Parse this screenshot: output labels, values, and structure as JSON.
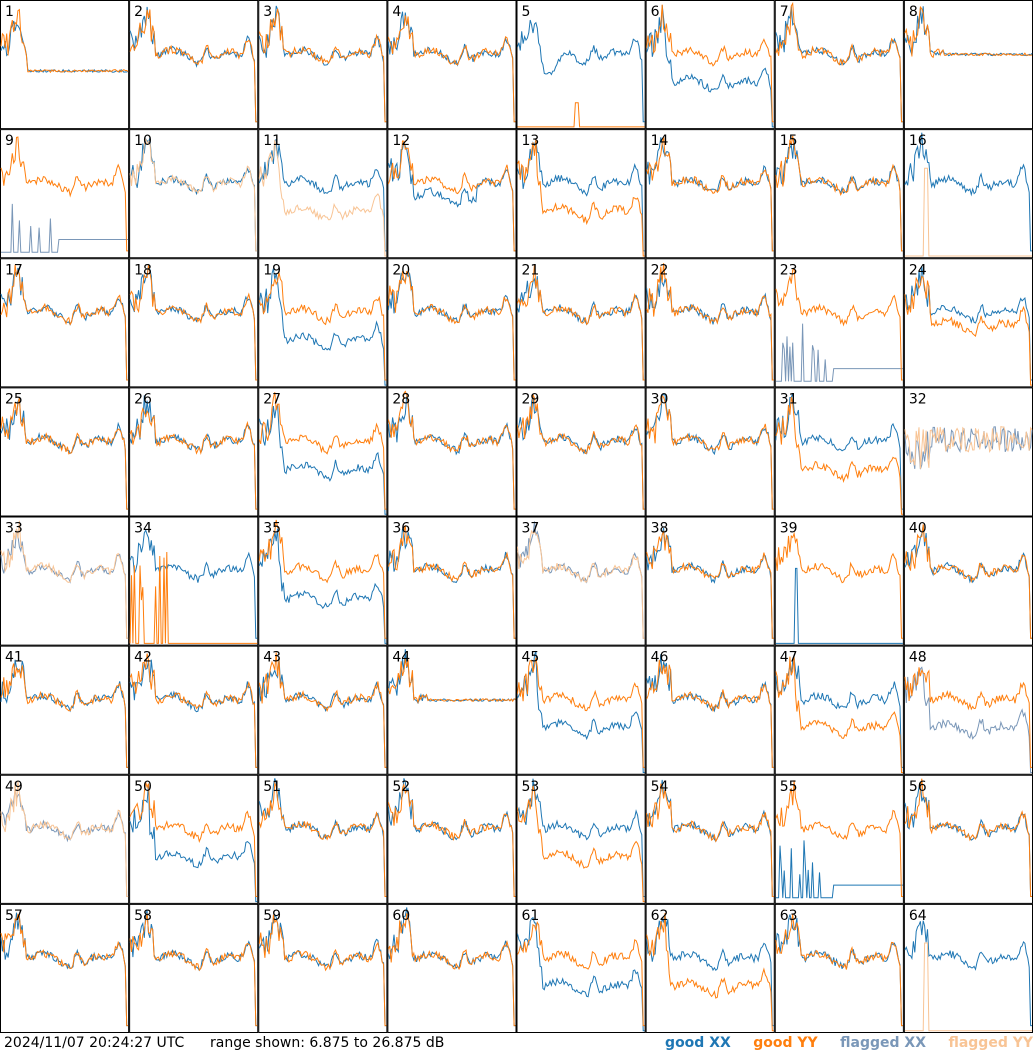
{
  "footer": {
    "timestamp": "2024/11/07 20:24:27 UTC",
    "range_text": "range shown: 6.875 to 26.875 dB"
  },
  "legend": [
    {
      "label": "good XX",
      "color": "#1f77b4"
    },
    {
      "label": "good YY",
      "color": "#ff7f0e"
    },
    {
      "label": "flagged XX",
      "color": "#7a97b8"
    },
    {
      "label": "flagged YY",
      "color": "#f8c495"
    }
  ],
  "chart_data": {
    "type": "line",
    "grid": "8x8 small multiples, one panel per antenna",
    "y_range_db": [
      6.875,
      26.875
    ],
    "series_names": [
      "good XX",
      "good YY",
      "flagged XX",
      "flagged YY"
    ],
    "panels": [
      {
        "id": "1",
        "xx": "good",
        "yy": "good",
        "pattern": "flat-low"
      },
      {
        "id": "2",
        "xx": "good",
        "yy": "good",
        "pattern": "normal"
      },
      {
        "id": "3",
        "xx": "good",
        "yy": "good",
        "pattern": "normal"
      },
      {
        "id": "4",
        "xx": "good",
        "yy": "good",
        "pattern": "normal"
      },
      {
        "id": "5",
        "xx": "good",
        "yy": "good",
        "pattern": "xx-dip-yy-bottom"
      },
      {
        "id": "6",
        "xx": "good",
        "yy": "good",
        "pattern": "xx-low"
      },
      {
        "id": "7",
        "xx": "good",
        "yy": "good",
        "pattern": "normal"
      },
      {
        "id": "8",
        "xx": "good",
        "yy": "good",
        "pattern": "flat-high"
      },
      {
        "id": "9",
        "xx": "flagged",
        "yy": "good",
        "pattern": "xx-spikes-bottom"
      },
      {
        "id": "10",
        "xx": "good",
        "yy": "flagged",
        "pattern": "normal"
      },
      {
        "id": "11",
        "xx": "good",
        "yy": "flagged",
        "pattern": "yy-low"
      },
      {
        "id": "12",
        "xx": "good",
        "yy": "good",
        "pattern": "yy-dropout"
      },
      {
        "id": "13",
        "xx": "good",
        "yy": "good",
        "pattern": "yy-low"
      },
      {
        "id": "14",
        "xx": "good",
        "yy": "good",
        "pattern": "normal"
      },
      {
        "id": "15",
        "xx": "good",
        "yy": "good",
        "pattern": "normal"
      },
      {
        "id": "16",
        "xx": "good",
        "yy": "flagged",
        "pattern": "xx-only-yy-bottom"
      },
      {
        "id": "17",
        "xx": "good",
        "yy": "good",
        "pattern": "normal"
      },
      {
        "id": "18",
        "xx": "good",
        "yy": "good",
        "pattern": "normal"
      },
      {
        "id": "19",
        "xx": "good",
        "yy": "good",
        "pattern": "xx-low"
      },
      {
        "id": "20",
        "xx": "good",
        "yy": "good",
        "pattern": "normal"
      },
      {
        "id": "21",
        "xx": "good",
        "yy": "good",
        "pattern": "normal"
      },
      {
        "id": "22",
        "xx": "good",
        "yy": "good",
        "pattern": "normal"
      },
      {
        "id": "23",
        "xx": "flagged",
        "yy": "good",
        "pattern": "xx-spikes-bottom"
      },
      {
        "id": "24",
        "xx": "good",
        "yy": "good",
        "pattern": "yy-lower"
      },
      {
        "id": "25",
        "xx": "good",
        "yy": "good",
        "pattern": "normal"
      },
      {
        "id": "26",
        "xx": "good",
        "yy": "good",
        "pattern": "normal"
      },
      {
        "id": "27",
        "xx": "good",
        "yy": "good",
        "pattern": "xx-low"
      },
      {
        "id": "28",
        "xx": "good",
        "yy": "good",
        "pattern": "normal"
      },
      {
        "id": "29",
        "xx": "good",
        "yy": "good",
        "pattern": "normal"
      },
      {
        "id": "30",
        "xx": "good",
        "yy": "good",
        "pattern": "normal"
      },
      {
        "id": "31",
        "xx": "good",
        "yy": "good",
        "pattern": "yy-low"
      },
      {
        "id": "32",
        "xx": "flagged",
        "yy": "flagged",
        "pattern": "flagged-noisy"
      },
      {
        "id": "33",
        "xx": "flagged",
        "yy": "flagged",
        "pattern": "normal"
      },
      {
        "id": "34",
        "xx": "good",
        "yy": "good",
        "pattern": "yy-spikes-bottom"
      },
      {
        "id": "35",
        "xx": "good",
        "yy": "good",
        "pattern": "xx-low"
      },
      {
        "id": "36",
        "xx": "good",
        "yy": "good",
        "pattern": "normal"
      },
      {
        "id": "37",
        "xx": "flagged",
        "yy": "flagged",
        "pattern": "normal"
      },
      {
        "id": "38",
        "xx": "good",
        "yy": "good",
        "pattern": "normal"
      },
      {
        "id": "39",
        "xx": "good",
        "yy": "good",
        "pattern": "xx-only-spike"
      },
      {
        "id": "40",
        "xx": "good",
        "yy": "good",
        "pattern": "normal"
      },
      {
        "id": "41",
        "xx": "good",
        "yy": "good",
        "pattern": "normal"
      },
      {
        "id": "42",
        "xx": "good",
        "yy": "good",
        "pattern": "normal"
      },
      {
        "id": "43",
        "xx": "good",
        "yy": "good",
        "pattern": "normal"
      },
      {
        "id": "44",
        "xx": "good",
        "yy": "good",
        "pattern": "flat-high"
      },
      {
        "id": "45",
        "xx": "good",
        "yy": "good",
        "pattern": "xx-low"
      },
      {
        "id": "46",
        "xx": "good",
        "yy": "good",
        "pattern": "normal"
      },
      {
        "id": "47",
        "xx": "good",
        "yy": "good",
        "pattern": "yy-low"
      },
      {
        "id": "48",
        "xx": "flagged",
        "yy": "good",
        "pattern": "xx-low"
      },
      {
        "id": "49",
        "xx": "flagged",
        "yy": "flagged",
        "pattern": "normal"
      },
      {
        "id": "50",
        "xx": "good",
        "yy": "good",
        "pattern": "xx-low"
      },
      {
        "id": "51",
        "xx": "good",
        "yy": "good",
        "pattern": "normal"
      },
      {
        "id": "52",
        "xx": "good",
        "yy": "good",
        "pattern": "normal"
      },
      {
        "id": "53",
        "xx": "good",
        "yy": "good",
        "pattern": "yy-low"
      },
      {
        "id": "54",
        "xx": "good",
        "yy": "good",
        "pattern": "normal"
      },
      {
        "id": "55",
        "xx": "good",
        "yy": "good",
        "pattern": "xx-spikes-bottom"
      },
      {
        "id": "56",
        "xx": "good",
        "yy": "good",
        "pattern": "normal"
      },
      {
        "id": "57",
        "xx": "good",
        "yy": "good",
        "pattern": "normal"
      },
      {
        "id": "58",
        "xx": "good",
        "yy": "good",
        "pattern": "normal"
      },
      {
        "id": "59",
        "xx": "good",
        "yy": "good",
        "pattern": "normal"
      },
      {
        "id": "60",
        "xx": "good",
        "yy": "good",
        "pattern": "normal"
      },
      {
        "id": "61",
        "xx": "good",
        "yy": "good",
        "pattern": "xx-low"
      },
      {
        "id": "62",
        "xx": "good",
        "yy": "good",
        "pattern": "yy-low"
      },
      {
        "id": "63",
        "xx": "good",
        "yy": "good",
        "pattern": "normal"
      },
      {
        "id": "64",
        "xx": "good",
        "yy": "flagged",
        "pattern": "xx-only-yy-bottom"
      }
    ]
  }
}
